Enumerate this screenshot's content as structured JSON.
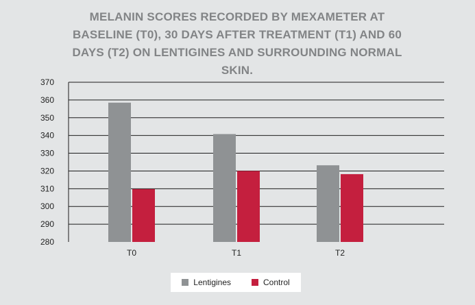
{
  "chart_data": {
    "type": "bar",
    "title": "MELANIN SCORES RECORDED BY MEXAMETER AT BASELINE (T0), 30 DAYS AFTER TREATMENT (T1) AND 60 DAYS (T2) ON LENTIGINES AND SURROUNDING NORMAL SKIN.",
    "xlabel": "",
    "ylabel": "",
    "categories": [
      "T0",
      "T1",
      "T2"
    ],
    "series": [
      {
        "name": "Lentigines",
        "values": [
          358.5,
          340.8,
          323.2
        ],
        "color": "#8f9294"
      },
      {
        "name": "Control",
        "values": [
          309.8,
          320.0,
          318.2
        ],
        "color": "#c41f3e"
      }
    ],
    "ylim": [
      280,
      370
    ],
    "yticks": [
      280,
      290,
      300,
      310,
      320,
      330,
      340,
      350,
      360,
      370
    ],
    "grid": true,
    "legend_position": "bottom"
  }
}
